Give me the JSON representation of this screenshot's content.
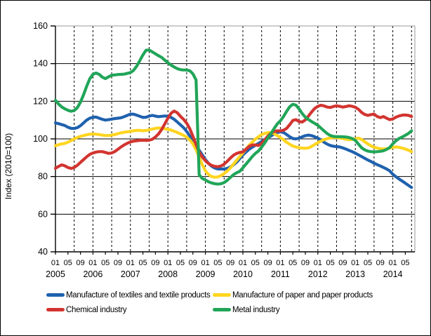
{
  "chart_data": {
    "type": "line",
    "title": "",
    "ylabel": "Index (2010=100)",
    "ylim": [
      40,
      160
    ],
    "ytick_step": 20,
    "y_tick_labels": [
      "40",
      "60",
      "80",
      "100",
      "120",
      "140",
      "160"
    ],
    "x_frequency": "monthly",
    "x_start": "2005-01",
    "x_end": "2014-07",
    "grid": {
      "horizontal": "solid",
      "vertical": "dashed every 6 months"
    },
    "legend_position": "bottom",
    "x_axis_years": [
      {
        "label": "2005",
        "month_ticks": [
          "01",
          "05",
          "09"
        ]
      },
      {
        "label": "2006",
        "month_ticks": [
          "01",
          "05",
          "09"
        ]
      },
      {
        "label": "2007",
        "month_ticks": [
          "01",
          "05",
          "09"
        ]
      },
      {
        "label": "2008",
        "month_ticks": [
          "01",
          "05",
          "09"
        ]
      },
      {
        "label": "2009",
        "month_ticks": [
          "01",
          "05",
          "09"
        ]
      },
      {
        "label": "2010",
        "month_ticks": [
          "01",
          "05",
          "09"
        ]
      },
      {
        "label": "2011",
        "month_ticks": [
          "01",
          "05",
          "09"
        ]
      },
      {
        "label": "2012",
        "month_ticks": [
          "01",
          "05",
          "09"
        ]
      },
      {
        "label": "2013",
        "month_ticks": [
          "01",
          "05",
          "09"
        ]
      },
      {
        "label": "2014",
        "month_ticks": [
          "01",
          "05"
        ]
      }
    ],
    "series": [
      {
        "name": "Manufacture of textiles and textile products",
        "color": "#1F61AE",
        "values": [
          108.5,
          108.1,
          107.6,
          107.1,
          106.2,
          105.6,
          105.5,
          106.0,
          107.0,
          108.5,
          110.0,
          111.0,
          111.5,
          111.6,
          111.0,
          110.4,
          110.0,
          110.2,
          110.5,
          110.8,
          111.0,
          111.2,
          111.8,
          112.5,
          113.2,
          113.1,
          112.6,
          112.0,
          111.4,
          111.5,
          112.1,
          112.5,
          112.1,
          111.8,
          112.0,
          112.2,
          112.0,
          111.4,
          110.4,
          109.0,
          107.5,
          106.0,
          104.0,
          101.5,
          99.0,
          96.5,
          94.0,
          91.5,
          89.0,
          87.0,
          85.5,
          84.5,
          84.0,
          84.0,
          84.0,
          84.3,
          85.1,
          86.2,
          87.6,
          89.5,
          91.5,
          93.0,
          94.5,
          95.6,
          96.6,
          97.6,
          98.6,
          99.6,
          100.6,
          101.6,
          102.6,
          103.3,
          103.8,
          103.4,
          102.3,
          101.1,
          100.2,
          100.0,
          100.4,
          101.1,
          101.7,
          102.0,
          101.7,
          101.1,
          100.4,
          99.4,
          98.2,
          97.2,
          96.5,
          96.1,
          95.9,
          95.7,
          95.2,
          94.6,
          93.9,
          93.2,
          92.4,
          91.5,
          90.6,
          89.7,
          88.8,
          88.0,
          87.1,
          86.3,
          85.6,
          84.8,
          84.0,
          83.0,
          81.2,
          79.9,
          78.7,
          77.6,
          76.5,
          75.3,
          74.2
        ]
      },
      {
        "name": "Manufacture of paper and paper products",
        "color": "#FFD520",
        "values": [
          96.4,
          96.9,
          97.3,
          97.6,
          98.3,
          99.1,
          100.0,
          100.8,
          101.3,
          101.8,
          102.2,
          102.5,
          102.6,
          102.5,
          102.3,
          102.0,
          101.8,
          101.8,
          102.0,
          102.3,
          102.8,
          103.2,
          103.5,
          103.8,
          104.0,
          104.3,
          104.5,
          104.5,
          104.3,
          104.5,
          104.8,
          105.2,
          105.6,
          105.8,
          105.7,
          105.4,
          105.1,
          104.7,
          104.1,
          103.4,
          102.7,
          101.9,
          100.9,
          99.4,
          97.3,
          94.3,
          90.4,
          86.4,
          83.0,
          81.1,
          80.0,
          79.6,
          79.8,
          80.5,
          81.6,
          82.9,
          84.6,
          86.6,
          88.6,
          90.6,
          92.6,
          94.6,
          96.6,
          98.3,
          99.9,
          101.1,
          102.3,
          102.9,
          103.3,
          103.3,
          102.8,
          101.8,
          100.7,
          99.5,
          98.2,
          97.1,
          96.2,
          95.7,
          95.3,
          95.1,
          95.0,
          95.2,
          96.0,
          97.0,
          98.0,
          98.9,
          99.6,
          100.1,
          100.5,
          100.7,
          100.7,
          100.5,
          100.2,
          99.8,
          99.6,
          99.7,
          100.0,
          100.4,
          99.7,
          98.5,
          97.3,
          96.3,
          95.6,
          95.1,
          94.8,
          94.6,
          94.8,
          95.1,
          95.5,
          95.7,
          95.5,
          95.1,
          94.6,
          94.0,
          93.2
        ]
      },
      {
        "name": "Chemical industry",
        "color": "#D23430",
        "values": [
          84.4,
          85.4,
          86.2,
          85.7,
          84.8,
          84.3,
          84.8,
          86.0,
          87.5,
          89.0,
          90.5,
          91.8,
          92.5,
          93.0,
          93.2,
          93.2,
          92.8,
          92.3,
          92.5,
          93.3,
          94.5,
          95.7,
          96.8,
          97.7,
          98.4,
          98.8,
          99.0,
          99.2,
          99.3,
          99.2,
          99.3,
          99.8,
          101.0,
          102.6,
          105.0,
          108.0,
          111.0,
          113.6,
          114.8,
          113.9,
          112.0,
          110.4,
          108.4,
          105.4,
          101.4,
          97.0,
          93.0,
          90.4,
          88.4,
          86.9,
          85.9,
          85.4,
          85.2,
          85.6,
          86.6,
          88.1,
          89.8,
          91.3,
          92.3,
          92.8,
          93.1,
          94.5,
          96.0,
          96.8,
          96.8,
          96.5,
          97.6,
          99.5,
          101.5,
          103.0,
          104.0,
          104.3,
          104.3,
          104.6,
          105.6,
          107.6,
          109.8,
          110.2,
          109.2,
          109.0,
          110.1,
          112.1,
          114.3,
          116.2,
          117.3,
          117.9,
          117.5,
          116.9,
          116.7,
          117.2,
          117.6,
          117.3,
          116.9,
          117.2,
          117.6,
          117.3,
          116.8,
          115.7,
          114.1,
          113.0,
          112.5,
          112.9,
          113.2,
          111.9,
          111.3,
          111.9,
          111.0,
          110.2,
          110.6,
          111.5,
          112.2,
          112.6,
          112.7,
          112.5,
          111.9
        ]
      },
      {
        "name": "Metal industry",
        "color": "#21A558",
        "values": [
          120.5,
          118.5,
          117.0,
          116.0,
          115.2,
          114.7,
          115.1,
          116.6,
          119.5,
          123.5,
          128.0,
          132.0,
          134.3,
          135.0,
          134.3,
          132.8,
          132.0,
          133.0,
          133.8,
          134.0,
          134.2,
          134.3,
          134.4,
          134.8,
          135.2,
          136.4,
          138.6,
          141.6,
          144.6,
          147.1,
          147.2,
          146.2,
          145.2,
          144.2,
          143.3,
          141.8,
          140.5,
          139.2,
          138.2,
          137.3,
          136.8,
          136.6,
          136.6,
          136.2,
          134.6,
          131.3,
          81.0,
          79.0,
          78.2,
          77.2,
          76.6,
          76.2,
          76.0,
          76.2,
          76.8,
          78.0,
          79.5,
          81.0,
          82.0,
          82.8,
          84.6,
          86.6,
          88.6,
          90.6,
          92.3,
          93.6,
          95.6,
          97.9,
          100.5,
          102.9,
          105.5,
          107.9,
          109.6,
          111.9,
          114.6,
          117.1,
          118.4,
          117.9,
          115.9,
          113.4,
          111.5,
          110.3,
          109.2,
          108.2,
          107.2,
          105.7,
          104.2,
          102.8,
          101.8,
          101.3,
          101.2,
          101.2,
          101.1,
          101.0,
          100.7,
          100.2,
          99.2,
          97.2,
          95.3,
          94.2,
          93.5,
          93.2,
          93.1,
          93.2,
          93.4,
          93.7,
          94.4,
          95.4,
          97.4,
          99.0,
          100.2,
          101.0,
          101.9,
          102.9,
          104.3
        ]
      }
    ]
  }
}
